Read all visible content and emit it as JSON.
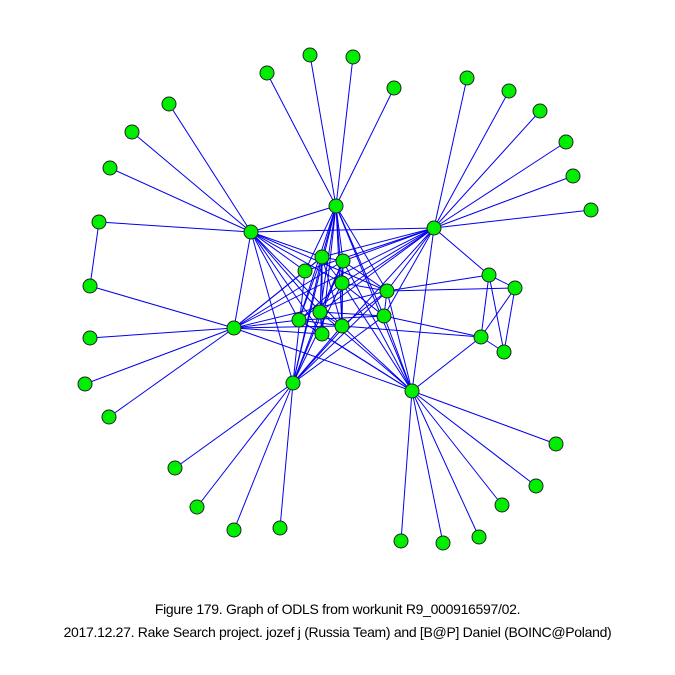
{
  "caption": {
    "line1": "Figure 179. Graph of ODLS from workunit R9_000916597/02.",
    "line2": "2017.12.27. Rake Search project. jozef j (Russia Team) and [B@P] Daniel (BOINC@Poland)"
  }
}
